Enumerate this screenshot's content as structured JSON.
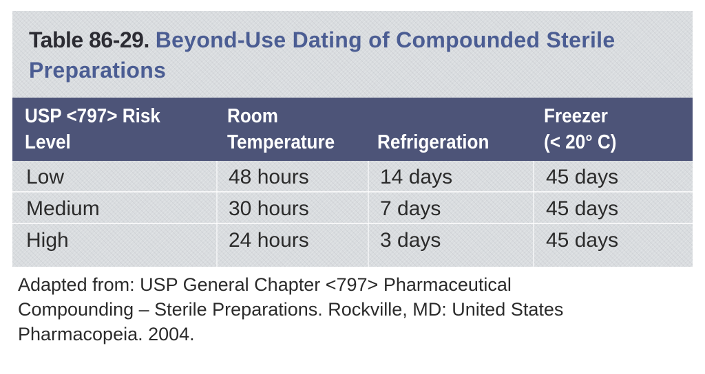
{
  "table": {
    "number": "Table 86-29.",
    "title": "Beyond-Use Dating of Compounded Sterile Preparations",
    "headers": {
      "risk_line1": "USP <797> Risk",
      "risk_line2": "Level",
      "room_line1": "Room",
      "room_line2": "Temperature",
      "refrigeration": "Refrigeration",
      "freezer_line1": "Freezer",
      "freezer_line2": "(< 20° C)"
    },
    "rows": [
      {
        "level": "Low",
        "room": "48 hours",
        "refrigeration": "14 days",
        "freezer": "45 days"
      },
      {
        "level": "Medium",
        "room": "30 hours",
        "refrigeration": "7 days",
        "freezer": "45 days"
      },
      {
        "level": "High",
        "room": "24 hours",
        "refrigeration": "3 days",
        "freezer": "45 days"
      }
    ]
  },
  "footnote": {
    "line1": "Adapted from: USP General Chapter <797> Pharmaceutical",
    "line2": "Compounding – Sterile Preparations. Rockville, MD: United States",
    "line3": "Pharmacopeia. 2004."
  },
  "colors": {
    "header_band": "#4d5478",
    "title_blue": "#4b5d93",
    "panel_bg": "#d9dcdf"
  }
}
